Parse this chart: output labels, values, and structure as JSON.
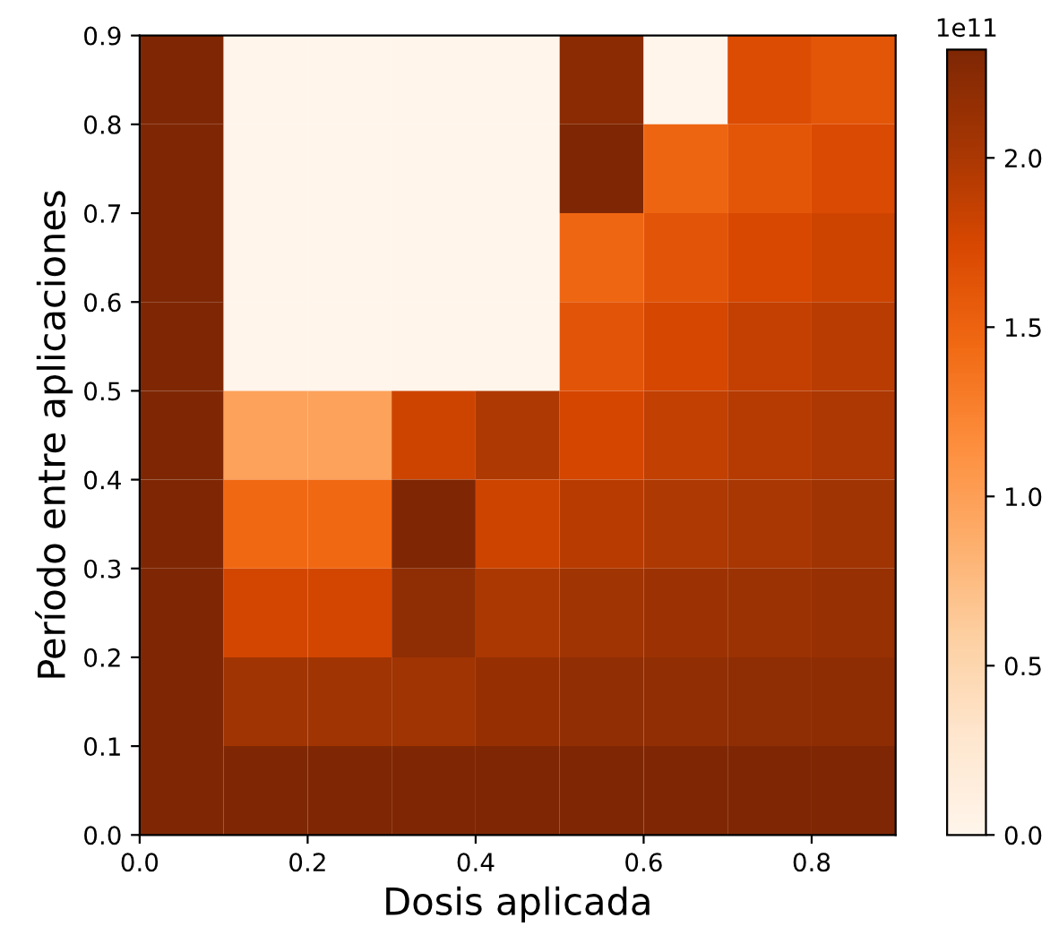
{
  "chart_data": {
    "type": "heatmap",
    "xlabel": "Dosis aplicada",
    "ylabel": "Período entre aplicaciones",
    "cells": [
      [
        2.32,
        0,
        0,
        0,
        0,
        2.23,
        0,
        1.7,
        1.62
      ],
      [
        2.32,
        0,
        0,
        0,
        0,
        2.32,
        1.48,
        1.62,
        1.72
      ],
      [
        2.32,
        0,
        0,
        0,
        0,
        1.47,
        1.63,
        1.74,
        1.81
      ],
      [
        2.32,
        0,
        0,
        0,
        0,
        1.63,
        1.75,
        1.86,
        1.92
      ],
      [
        2.32,
        0.97,
        0.97,
        1.81,
        1.98,
        1.76,
        1.87,
        1.94,
        1.99
      ],
      [
        2.32,
        1.45,
        1.45,
        2.32,
        1.81,
        1.93,
        1.98,
        2.02,
        2.06
      ],
      [
        2.32,
        1.77,
        1.77,
        2.2,
        2.0,
        2.07,
        2.1,
        2.11,
        2.13
      ],
      [
        2.32,
        2.07,
        2.07,
        2.07,
        2.14,
        2.18,
        2.18,
        2.2,
        2.21
      ],
      [
        2.32,
        2.32,
        2.32,
        2.32,
        2.32,
        2.32,
        2.32,
        2.32,
        2.32
      ]
    ],
    "xlim": [
      0,
      0.9
    ],
    "ylim": [
      0,
      0.9
    ],
    "xticks": [
      {
        "value": 0,
        "label": "0.0"
      },
      {
        "value": 0.2,
        "label": "0.2"
      },
      {
        "value": 0.4,
        "label": "0.4"
      },
      {
        "value": 0.6,
        "label": "0.6"
      },
      {
        "value": 0.8,
        "label": "0.8"
      }
    ],
    "yticks": [
      {
        "value": 0,
        "label": "0.0"
      },
      {
        "value": 0.1,
        "label": "0.1"
      },
      {
        "value": 0.2,
        "label": "0.2"
      },
      {
        "value": 0.3,
        "label": "0.3"
      },
      {
        "value": 0.4,
        "label": "0.4"
      },
      {
        "value": 0.5,
        "label": "0.5"
      },
      {
        "value": 0.6,
        "label": "0.6"
      },
      {
        "value": 0.7,
        "label": "0.7"
      },
      {
        "value": 0.8,
        "label": "0.8"
      },
      {
        "value": 0.9,
        "label": "0.9"
      }
    ],
    "clim": [
      0,
      2.32
    ],
    "cticks": [
      {
        "value": 0,
        "label": "0.0"
      },
      {
        "value": 0.5,
        "label": "0.5"
      },
      {
        "value": 1.0,
        "label": "1.0"
      },
      {
        "value": 1.5,
        "label": "1.5"
      },
      {
        "value": 2.0,
        "label": "2.0"
      }
    ],
    "annotations": [
      "1e11"
    ]
  }
}
